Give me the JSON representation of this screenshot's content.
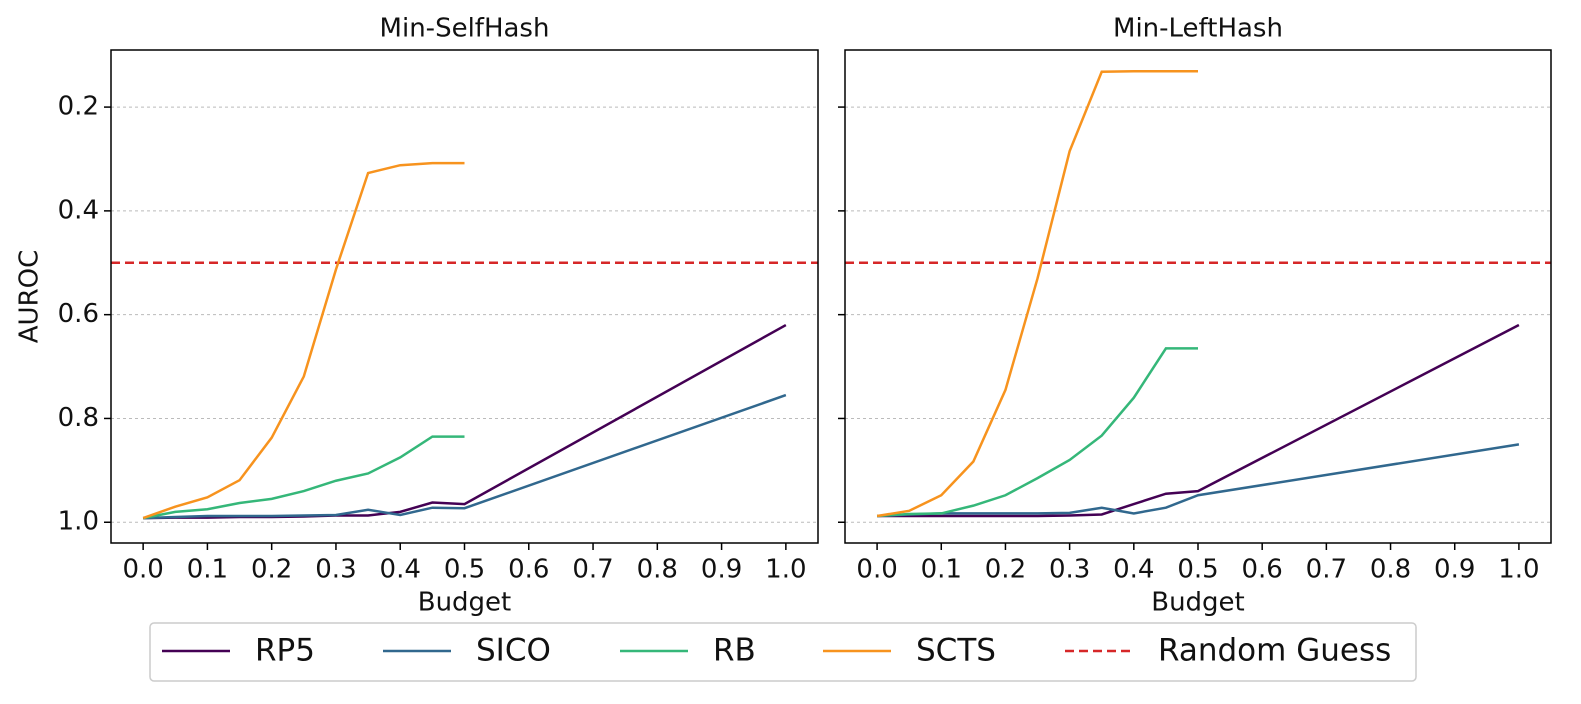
{
  "chart_data": [
    {
      "type": "line",
      "title": "Min-SelfHash",
      "x_label": "Budget",
      "y_label": "AUROC",
      "x": [
        0,
        0.05,
        0.1,
        0.15,
        0.2,
        0.25,
        0.3,
        0.35,
        0.4,
        0.45,
        0.5,
        1.0
      ],
      "xlim": [
        -0.05,
        1.05
      ],
      "xticks": [
        {
          "value": 0,
          "label": "0.0"
        },
        0.1,
        0.2,
        0.3,
        0.4,
        0.5,
        0.6,
        0.7,
        0.8,
        0.9,
        {
          "value": 1,
          "label": "1.0"
        }
      ],
      "ylim": [
        1.04,
        0.09
      ],
      "y_inverted": true,
      "yticks": [
        0.2,
        0.4,
        0.6,
        0.8,
        {
          "value": 1,
          "label": "1.0"
        }
      ],
      "grid": true,
      "series": [
        {
          "name": "RP5",
          "color": "#440154",
          "values": [
            0.992,
            0.991,
            0.991,
            0.99,
            0.99,
            0.989,
            0.987,
            0.987,
            0.98,
            0.962,
            0.965,
            0.62
          ]
        },
        {
          "name": "SICO",
          "color": "#31688e",
          "values": [
            0.992,
            0.99,
            0.988,
            0.988,
            0.988,
            0.987,
            0.986,
            0.976,
            0.986,
            0.972,
            0.973,
            0.755
          ]
        },
        {
          "name": "RB",
          "color": "#35b779",
          "values": [
            0.992,
            0.98,
            0.975,
            0.963,
            0.955,
            0.94,
            0.92,
            0.906,
            0.875,
            0.835,
            0.835,
            null
          ]
        },
        {
          "name": "SCTS",
          "color": "#f7931e",
          "values": [
            0.992,
            0.97,
            0.952,
            0.919,
            0.837,
            0.719,
            0.513,
            0.327,
            0.312,
            0.308,
            0.308,
            null
          ]
        }
      ],
      "hline": {
        "name": "Random Guess",
        "value": 0.5,
        "color": "#d62728"
      }
    },
    {
      "type": "line",
      "title": "Min-LeftHash",
      "x_label": "Budget",
      "x": [
        0,
        0.05,
        0.1,
        0.15,
        0.2,
        0.25,
        0.3,
        0.35,
        0.4,
        0.45,
        0.5,
        1.0
      ],
      "xlim": [
        -0.05,
        1.05
      ],
      "xticks": [
        {
          "value": 0,
          "label": "0.0"
        },
        0.1,
        0.2,
        0.3,
        0.4,
        0.5,
        0.6,
        0.7,
        0.8,
        0.9,
        {
          "value": 1,
          "label": "1.0"
        }
      ],
      "ylim": [
        1.04,
        0.09
      ],
      "y_inverted": true,
      "yticks": [
        0.2,
        0.4,
        0.6,
        0.8,
        1
      ],
      "grid": true,
      "series": [
        {
          "name": "RP5",
          "color": "#440154",
          "values": [
            0.988,
            0.988,
            0.988,
            0.988,
            0.988,
            0.988,
            0.987,
            0.985,
            0.965,
            0.945,
            0.94,
            0.62
          ]
        },
        {
          "name": "SICO",
          "color": "#31688e",
          "values": [
            0.988,
            0.985,
            0.983,
            0.983,
            0.983,
            0.983,
            0.982,
            0.972,
            0.983,
            0.972,
            0.948,
            0.85
          ]
        },
        {
          "name": "RB",
          "color": "#35b779",
          "values": [
            0.988,
            0.984,
            0.983,
            0.968,
            0.948,
            0.915,
            0.88,
            0.833,
            0.76,
            0.665,
            0.665,
            null
          ]
        },
        {
          "name": "SCTS",
          "color": "#f7931e",
          "values": [
            0.988,
            0.978,
            0.948,
            0.883,
            0.745,
            0.53,
            0.285,
            0.132,
            0.131,
            0.131,
            0.131,
            null
          ]
        }
      ],
      "hline": {
        "name": "Random Guess",
        "value": 0.5,
        "color": "#d62728"
      }
    }
  ]
}
